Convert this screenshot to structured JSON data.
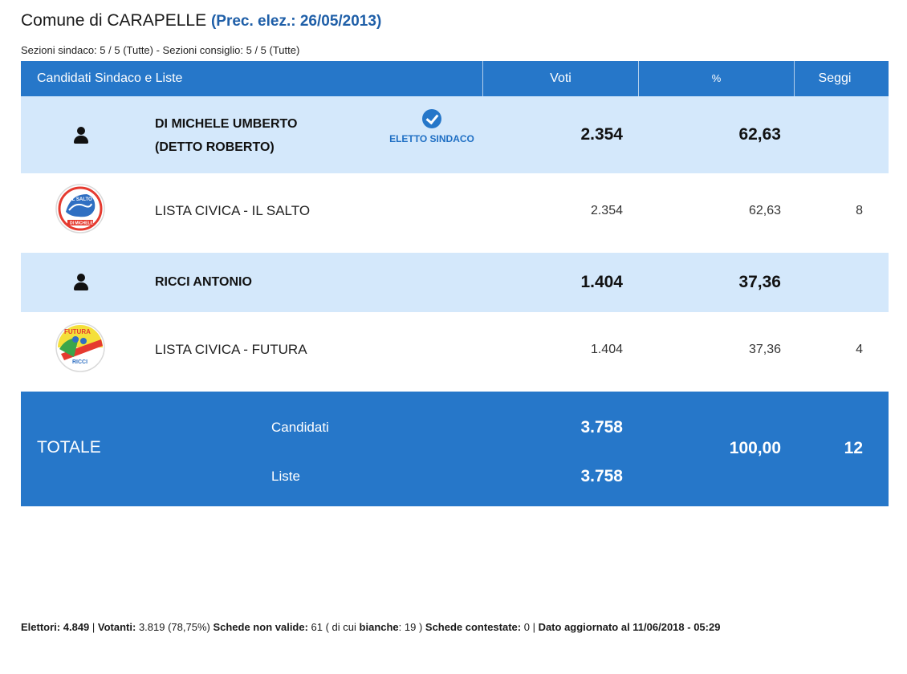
{
  "header": {
    "title_prefix": "Comune di CARAPELLE",
    "prec": "(Prec. elez.: 26/05/2013)",
    "subtitle": "Sezioni sindaco: 5 / 5 (Tutte) - Sezioni consiglio: 5 / 5 (Tutte)"
  },
  "table": {
    "columns": [
      "Candidati Sindaco e Liste",
      "Voti",
      "%",
      "Seggi"
    ],
    "rows": [
      {
        "type": "candidate",
        "name_line1": "DI MICHELE UMBERTO",
        "name_line2": "(DETTO ROBERTO)",
        "badge": "ELETTO SINDACO",
        "voti": "2.354",
        "pct": "62,63"
      },
      {
        "type": "list",
        "name": "LISTA CIVICA - IL SALTO",
        "voti": "2.354",
        "pct": "62,63",
        "seggi": "8",
        "logo_icon": "il-salto-logo"
      },
      {
        "type": "candidate",
        "name_line1": "RICCI ANTONIO",
        "voti": "1.404",
        "pct": "37,36"
      },
      {
        "type": "list",
        "name": "LISTA CIVICA - FUTURA",
        "voti": "1.404",
        "pct": "37,36",
        "seggi": "4",
        "logo_icon": "futura-logo"
      }
    ]
  },
  "totale": {
    "label": "TOTALE",
    "candidati_label": "Candidati",
    "candidati_voti": "3.758",
    "liste_label": "Liste",
    "liste_voti": "3.758",
    "pct": "100,00",
    "seggi": "12"
  },
  "footer": {
    "elettori_label": "Elettori:",
    "elettori": "4.849",
    "sep1": " | ",
    "votanti_label": "Votanti:",
    "votanti": " 3.819 (78,75%) ",
    "schede_nv_label": "Schede non valide:",
    "schede_nv": " 61 ( di cui ",
    "bianche_label": "bianche",
    "bianche": ": 19 ) ",
    "contestate_label": "Schede contestate:",
    "contestate": " 0 | ",
    "aggiornato": "Dato aggiornato al 11/06/2018 - 05:29"
  },
  "colors": {
    "header_blue": "#2677c9",
    "candidate_row": "#d4e8fb",
    "prec_link": "#1f5fa8"
  }
}
